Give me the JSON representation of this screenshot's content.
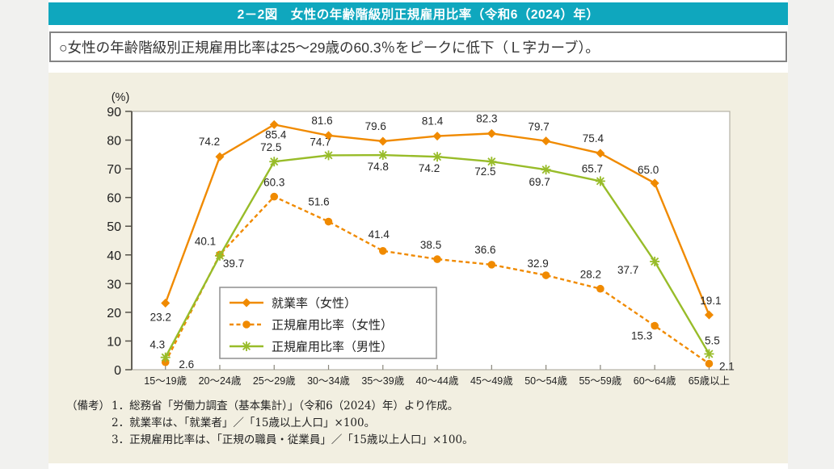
{
  "header": {
    "title": "2－2図　女性の年齢階級別正規雇用比率（令和6（2024）年）"
  },
  "summary": {
    "text": "○女性の年齢階級別正規雇用比率は25～29歳の60.3％をピークに低下（Ｌ字カーブ）。"
  },
  "chart_data": {
    "type": "line",
    "title": "",
    "y_unit": "(%)",
    "ylim": [
      0,
      90
    ],
    "ytick_step": 10,
    "grid": false,
    "legend_position": "inside-bottom-left",
    "categories": [
      "15～19歳",
      "20～24歳",
      "25～29歳",
      "30～34歳",
      "35～39歳",
      "40～44歳",
      "45～49歳",
      "50～54歳",
      "55～59歳",
      "60～64歳",
      "65歳以上"
    ],
    "series": [
      {
        "id": "employment-rate-women",
        "name": "就業率（女性）",
        "color": "#F08A00",
        "line": "solid",
        "marker": "diamond",
        "values": [
          23.2,
          74.2,
          85.4,
          81.6,
          79.6,
          81.4,
          82.3,
          79.7,
          75.4,
          65.0,
          19.1
        ]
      },
      {
        "id": "regular-employment-women",
        "name": "正規雇用比率（女性）",
        "color": "#F08A00",
        "line": "dashed",
        "marker": "circle",
        "values": [
          2.6,
          40.1,
          60.3,
          51.6,
          41.4,
          38.5,
          36.6,
          32.9,
          28.2,
          15.3,
          2.1
        ]
      },
      {
        "id": "regular-employment-men",
        "name": "正規雇用比率（男性）",
        "color": "#98BC29",
        "line": "solid",
        "marker": "asterisk",
        "values": [
          4.3,
          39.7,
          72.5,
          74.7,
          74.8,
          74.2,
          72.5,
          69.7,
          65.7,
          37.7,
          5.5
        ]
      }
    ]
  },
  "notes": {
    "label": "（備考）",
    "items": [
      "1．総務省「労働力調査（基本集計）」（令和6（2024）年）より作成。",
      "2．就業率は、「就業者」／「15歳以上人口」×100。",
      "3．正規雇用比率は、「正規の職員・従業員」／「15歳以上人口」×100。"
    ]
  },
  "colors": {
    "header_bg": "#0FA7BE",
    "panel_bg": "#F2EFE1",
    "orange": "#F08A00",
    "green": "#98BC29"
  }
}
